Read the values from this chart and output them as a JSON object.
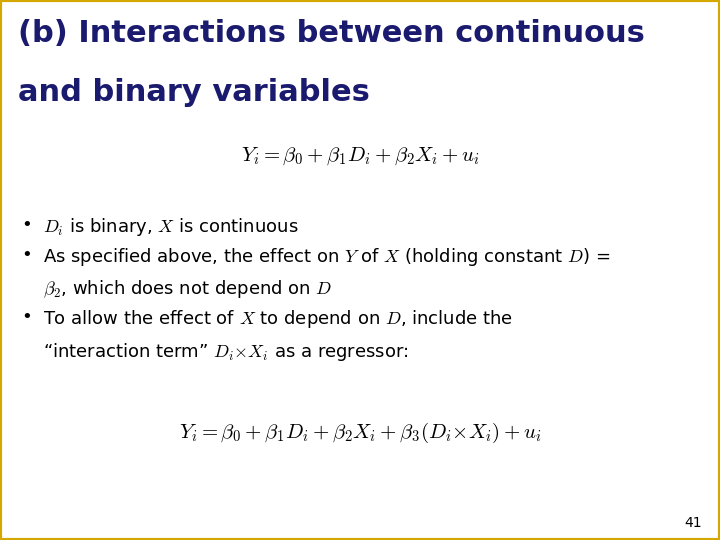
{
  "title_line1": "(b) Interactions between continuous",
  "title_line2": "and binary variables",
  "title_color": "#1a1a6e",
  "title_fontsize": 22,
  "background_color": "#ffffff",
  "border_color": "#d4a800",
  "slide_number": "41",
  "eq1": "$Y_i = \\beta_0 + \\beta_1 D_i + \\beta_2 X_i + u_i$",
  "eq2": "$Y_i = \\beta_0 + \\beta_1 D_i + \\beta_2 X_i + \\beta_3(D_i{\\times} X_i) + u_i$",
  "bullet1": "$D_i$ is binary, $X$ is continuous",
  "bullet2_line1": "As specified above, the effect on $Y$ of $X$ (holding constant $D$) =",
  "bullet2_line2": "$\\beta_2$, which does not depend on $D$",
  "bullet3_line1": "To allow the effect of $X$ to depend on $D$, include the",
  "bullet3_line2": "“interaction term” $D_i{\\times} X_i$ as a regressor:",
  "body_fontsize": 13,
  "eq_fontsize": 15
}
